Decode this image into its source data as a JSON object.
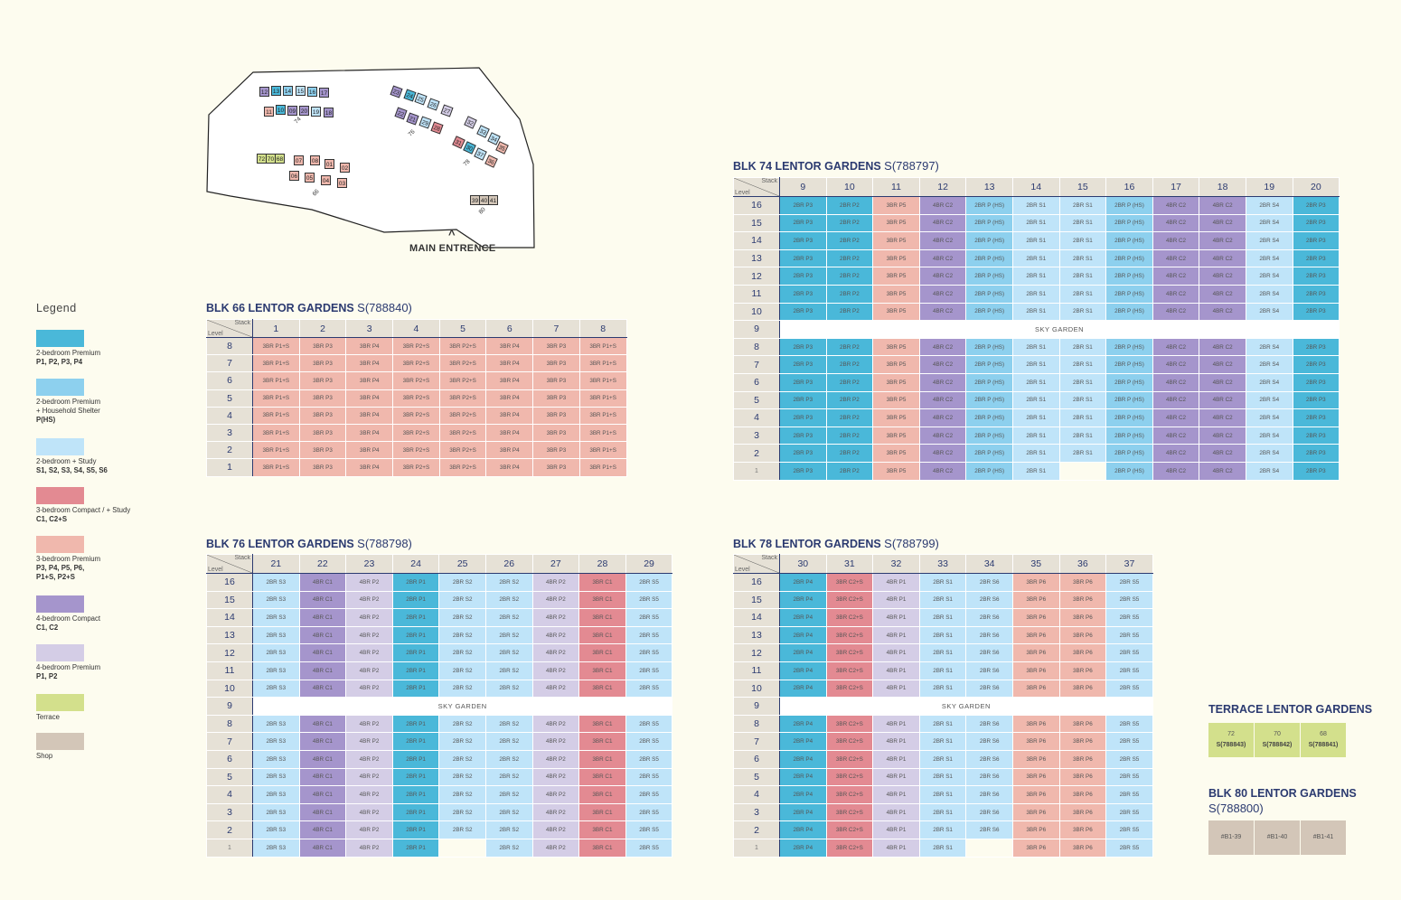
{
  "colors": {
    "P1": "#4ab8d9",
    "PHS": "#8dd0ee",
    "S": "#bfe4f9",
    "C": "#e38a92",
    "P": "#f0b8ad",
    "C4": "#a595cc",
    "P4": "#d4cde6",
    "T": "#d3e08c",
    "SH": "#d3c6b8"
  },
  "siteplan": {
    "entrance": "MAIN ENTRENCE",
    "caret": "^",
    "labels": {
      "b74": [
        "12",
        "13",
        "14",
        "15",
        "16",
        "17",
        "11",
        "10",
        "09",
        "20",
        "19",
        "18"
      ],
      "b66": [
        "07",
        "08",
        "01",
        "02",
        "06",
        "05",
        "04",
        "03"
      ],
      "terrace": [
        "72",
        "70",
        "68"
      ],
      "b76": [
        "23",
        "24",
        "25",
        "26",
        "27",
        "22",
        "21",
        "29",
        "28"
      ],
      "b78": [
        "32",
        "33",
        "34",
        "35",
        "31",
        "30",
        "37",
        "36"
      ],
      "b80": [
        "39",
        "40",
        "41"
      ],
      "blockNums": [
        "74",
        "66",
        "76",
        "78",
        "80"
      ]
    }
  },
  "legend": {
    "title": "Legend",
    "items": [
      {
        "key": "P1",
        "label": "2-bedroom Premium",
        "sub": "P1, P2, P3, P4"
      },
      {
        "key": "PHS",
        "label": "2-bedroom Premium",
        "label2": "+ Household Shelter",
        "sub": "P(HS)"
      },
      {
        "key": "S",
        "label": "2-bedroom + Study",
        "sub": "S1, S2, S3, S4, S5, S6"
      },
      {
        "key": "C",
        "label": "3-bedroom Compact / + Study",
        "sub": "C1, C2+S"
      },
      {
        "key": "P",
        "label": "3-bedroom Premium",
        "sub": "P3, P4, P5, P6,",
        "sub2": "P1+S, P2+S"
      },
      {
        "key": "C4",
        "label": "4-bedroom Compact",
        "sub": "C1, C2"
      },
      {
        "key": "P4",
        "label": "4-bedroom Premium",
        "sub": "P1, P2"
      },
      {
        "key": "T",
        "label": "Terrace"
      },
      {
        "key": "SH",
        "label": "Shop"
      }
    ]
  },
  "grid_labels": {
    "stack": "Stack",
    "level": "Level",
    "sky": "SKY GARDEN"
  },
  "blocks": [
    {
      "id": "b66",
      "title": "BLK 66 LENTOR GARDENS",
      "postal": "S(788840)",
      "stacks": [
        "1",
        "2",
        "3",
        "4",
        "5",
        "6",
        "7",
        "8"
      ],
      "levels": [
        "8",
        "7",
        "6",
        "5",
        "4",
        "3",
        "2",
        "1"
      ],
      "types": [
        {
          "t": "3BR P1+S",
          "c": "P"
        },
        {
          "t": "3BR P3",
          "c": "P"
        },
        {
          "t": "3BR P4",
          "c": "P"
        },
        {
          "t": "3BR P2+S",
          "c": "P"
        },
        {
          "t": "3BR P2+S",
          "c": "P"
        },
        {
          "t": "3BR P4",
          "c": "P"
        },
        {
          "t": "3BR P3",
          "c": "P"
        },
        {
          "t": "3BR P1+S",
          "c": "P"
        }
      ]
    },
    {
      "id": "b74",
      "title": "BLK 74 LENTOR GARDENS",
      "postal": "S(788797)",
      "stacks": [
        "9",
        "10",
        "11",
        "12",
        "13",
        "14",
        "15",
        "16",
        "17",
        "18",
        "19",
        "20"
      ],
      "levels": [
        "16",
        "15",
        "14",
        "13",
        "12",
        "11",
        "10",
        "9",
        "8",
        "7",
        "6",
        "5",
        "4",
        "3",
        "2",
        "1"
      ],
      "sky": "9",
      "types": [
        {
          "t": "2BR P3",
          "c": "P1"
        },
        {
          "t": "2BR P2",
          "c": "P1"
        },
        {
          "t": "3BR P5",
          "c": "P"
        },
        {
          "t": "4BR C2",
          "c": "C4"
        },
        {
          "t": "2BR P (HS)",
          "c": "PHS"
        },
        {
          "t": "2BR S1",
          "c": "S"
        },
        {
          "t": "2BR S1",
          "c": "S"
        },
        {
          "t": "2BR P (HS)",
          "c": "PHS"
        },
        {
          "t": "4BR C2",
          "c": "C4"
        },
        {
          "t": "4BR C2",
          "c": "C4"
        },
        {
          "t": "2BR S4",
          "c": "S"
        },
        {
          "t": "2BR P3",
          "c": "P1"
        }
      ],
      "empty": [
        [
          "1",
          "15"
        ]
      ]
    },
    {
      "id": "b76",
      "title": "BLK 76 LENTOR GARDENS",
      "postal": "S(788798)",
      "stacks": [
        "21",
        "22",
        "23",
        "24",
        "25",
        "26",
        "27",
        "28",
        "29"
      ],
      "levels": [
        "16",
        "15",
        "14",
        "13",
        "12",
        "11",
        "10",
        "9",
        "8",
        "7",
        "6",
        "5",
        "4",
        "3",
        "2",
        "1"
      ],
      "sky": "9",
      "types": [
        {
          "t": "2BR S3",
          "c": "S"
        },
        {
          "t": "4BR C1",
          "c": "C4"
        },
        {
          "t": "4BR P2",
          "c": "P4"
        },
        {
          "t": "2BR P1",
          "c": "P1"
        },
        {
          "t": "2BR S2",
          "c": "S"
        },
        {
          "t": "2BR S2",
          "c": "S"
        },
        {
          "t": "4BR P2",
          "c": "P4"
        },
        {
          "t": "3BR C1",
          "c": "C"
        },
        {
          "t": "2BR S5",
          "c": "S"
        }
      ],
      "empty": [
        [
          "1",
          "25"
        ]
      ]
    },
    {
      "id": "b78",
      "title": "BLK 78 LENTOR GARDENS",
      "postal": "S(788799)",
      "stacks": [
        "30",
        "31",
        "32",
        "33",
        "34",
        "35",
        "36",
        "37"
      ],
      "levels": [
        "16",
        "15",
        "14",
        "13",
        "12",
        "11",
        "10",
        "9",
        "8",
        "7",
        "6",
        "5",
        "4",
        "3",
        "2",
        "1"
      ],
      "sky": "9",
      "types": [
        {
          "t": "2BR P4",
          "c": "P1"
        },
        {
          "t": "3BR C2+S",
          "c": "C"
        },
        {
          "t": "4BR P1",
          "c": "P4"
        },
        {
          "t": "2BR S1",
          "c": "S"
        },
        {
          "t": "2BR S6",
          "c": "S"
        },
        {
          "t": "3BR P6",
          "c": "P"
        },
        {
          "t": "3BR P6",
          "c": "P"
        },
        {
          "t": "2BR S5",
          "c": "S"
        }
      ],
      "empty": [
        [
          "1",
          "34"
        ]
      ]
    }
  ],
  "terrace": {
    "title": "TERRACE LENTOR GARDENS",
    "units": [
      {
        "n": "72",
        "p": "S(788843)"
      },
      {
        "n": "70",
        "p": "S(788842)"
      },
      {
        "n": "68",
        "p": "S(788841)"
      }
    ]
  },
  "blk80": {
    "title": "BLK 80 LENTOR GARDENS",
    "postal": "S(788800)",
    "units": [
      "#B1-39",
      "#B1-40",
      "#B1-41"
    ]
  }
}
